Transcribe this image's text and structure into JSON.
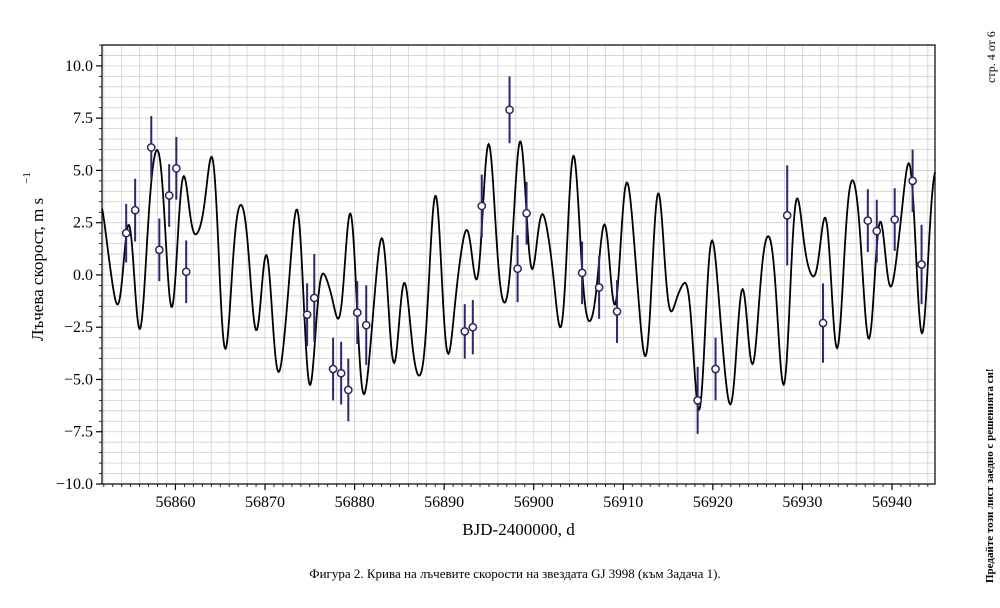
{
  "chart_data": {
    "type": "scatter",
    "xlabel": "BJD-2400000, d",
    "ylabel": "Лъчева скорост, m s",
    "ylabel_exponent": "−1",
    "xlim": [
      56851.8,
      56944.8
    ],
    "ylim": [
      -10.0,
      11.0
    ],
    "x_ticks": [
      56860,
      56870,
      56880,
      56890,
      56900,
      56910,
      56920,
      56930,
      56940
    ],
    "x_tick_labels": [
      "56860",
      "56870",
      "56880",
      "56890",
      "56900",
      "56910",
      "56920",
      "56930",
      "56940"
    ],
    "y_ticks": [
      -10.0,
      -7.5,
      -5.0,
      -2.5,
      0.0,
      2.5,
      5.0,
      7.5,
      10.0
    ],
    "y_tick_labels": [
      "−10.0",
      "−7.5",
      "−5.0",
      "−2.5",
      "0.0",
      "2.5",
      "5.0",
      "7.5",
      "10.0"
    ],
    "grid": true,
    "series": [
      {
        "points": [
          {
            "x": 56854.5,
            "y": 2.0,
            "err": 1.4
          },
          {
            "x": 56855.5,
            "y": 3.1,
            "err": 1.5
          },
          {
            "x": 56857.3,
            "y": 6.1,
            "err": 1.5
          },
          {
            "x": 56858.2,
            "y": 1.2,
            "err": 1.5
          },
          {
            "x": 56859.3,
            "y": 3.8,
            "err": 1.5
          },
          {
            "x": 56860.1,
            "y": 5.1,
            "err": 1.5
          },
          {
            "x": 56861.2,
            "y": 0.15,
            "err": 1.5
          },
          {
            "x": 56874.7,
            "y": -1.9,
            "err": 1.5
          },
          {
            "x": 56875.5,
            "y": -1.1,
            "err": 2.1
          },
          {
            "x": 56877.6,
            "y": -4.5,
            "err": 1.5
          },
          {
            "x": 56878.5,
            "y": -4.7,
            "err": 1.5
          },
          {
            "x": 56879.3,
            "y": -5.5,
            "err": 1.5
          },
          {
            "x": 56880.3,
            "y": -1.8,
            "err": 1.5
          },
          {
            "x": 56881.3,
            "y": -2.4,
            "err": 1.9
          },
          {
            "x": 56892.3,
            "y": -2.7,
            "err": 1.3
          },
          {
            "x": 56893.2,
            "y": -2.5,
            "err": 1.3
          },
          {
            "x": 56894.2,
            "y": 3.3,
            "err": 1.5
          },
          {
            "x": 56897.3,
            "y": 7.9,
            "err": 1.6
          },
          {
            "x": 56898.2,
            "y": 0.3,
            "err": 1.6
          },
          {
            "x": 56899.2,
            "y": 2.95,
            "err": 1.5
          },
          {
            "x": 56905.4,
            "y": 0.1,
            "err": 1.5
          },
          {
            "x": 56907.3,
            "y": -0.6,
            "err": 1.5
          },
          {
            "x": 56909.3,
            "y": -1.75,
            "err": 1.5
          },
          {
            "x": 56918.3,
            "y": -6.0,
            "err": 1.6
          },
          {
            "x": 56920.3,
            "y": -4.5,
            "err": 1.5
          },
          {
            "x": 56928.3,
            "y": 2.85,
            "err": 2.4
          },
          {
            "x": 56932.3,
            "y": -2.3,
            "err": 1.9
          },
          {
            "x": 56937.3,
            "y": 2.6,
            "err": 1.5
          },
          {
            "x": 56938.3,
            "y": 2.1,
            "err": 1.5
          },
          {
            "x": 56940.3,
            "y": 2.65,
            "err": 1.5
          },
          {
            "x": 56942.3,
            "y": 4.5,
            "err": 1.5
          },
          {
            "x": 56943.3,
            "y": 0.5,
            "err": 1.9
          }
        ]
      },
      {
        "type": "line",
        "model": {
          "components": [
            {
              "amplitude": 2.8,
              "period": 3.11,
              "phase": 1.6
            },
            {
              "amplitude": 1.7,
              "period": 5.2,
              "phase": 0.3
            },
            {
              "amplitude": 2.0,
              "period": 41.0,
              "phase": 1.2
            },
            {
              "amplitude": 1.0,
              "period": 17.0,
              "phase": 2.5
            },
            {
              "amplitude": 0.6,
              "period": 1.9,
              "phase": 0.5
            }
          ]
        }
      }
    ]
  },
  "caption": "Фигура 2. Крива на лъчевите скорости на звездата GJ 3998 (към Задача 1).",
  "page_number": "стр. 4 от 6",
  "side_note": "Предайте този лист заедно с решенията си!",
  "colors": {
    "point_edge": "#27245f",
    "point_fill": "#ffffff",
    "errorbar": "#2b2870",
    "curve": "#000000",
    "grid": "#d0d0d0",
    "axes": "#000000"
  }
}
